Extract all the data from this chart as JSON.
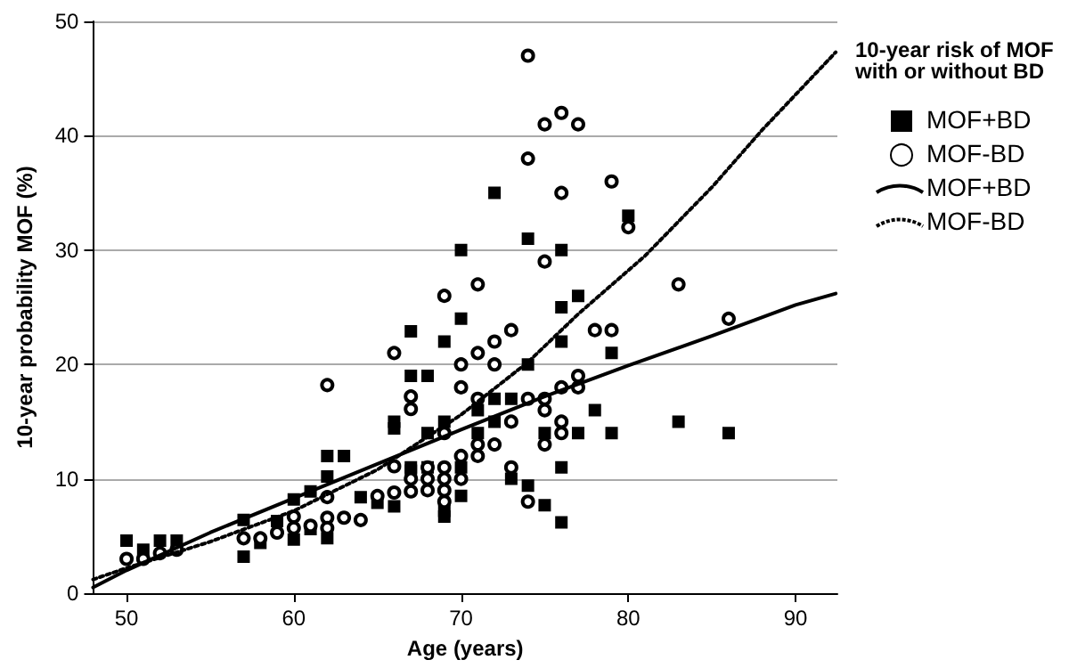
{
  "chart_data": {
    "type": "scatter",
    "xlabel": "Age (years)",
    "ylabel": "10-year probability MOF (%)",
    "legend_title": "10-year risk of MOF with or without BD",
    "legend": "right",
    "grid": "y",
    "xlim": [
      48,
      92.5
    ],
    "xticks": [
      50,
      60,
      70,
      80,
      90
    ],
    "ylim": [
      0,
      50
    ],
    "yticks": [
      0,
      10,
      20,
      30,
      40,
      50
    ],
    "series": [
      {
        "name": "MOF+BD",
        "marker": "square",
        "color": "#000000",
        "x": [
          50,
          51,
          52,
          53,
          57,
          57,
          58,
          59,
          60,
          60,
          61,
          61,
          62,
          62,
          63,
          62,
          64,
          65,
          66,
          66,
          66,
          67,
          67,
          67,
          70,
          76,
          77,
          76,
          70,
          69,
          76,
          74,
          68,
          72,
          73,
          71,
          72,
          69,
          68,
          71,
          75,
          77,
          67,
          73,
          74,
          76,
          70,
          69,
          69,
          75,
          76,
          80,
          79,
          78,
          83,
          86,
          79,
          72,
          74,
          68,
          70
        ],
        "values": [
          4.6,
          3.8,
          4.6,
          4.6,
          6.4,
          3.2,
          4.4,
          6.3,
          8.2,
          4.7,
          8.9,
          5.6,
          10.2,
          12,
          12,
          4.8,
          8.4,
          7.9,
          7.6,
          14.4,
          15,
          22.9,
          19,
          10.7,
          30,
          30,
          26,
          25,
          24,
          22,
          22,
          20,
          19,
          17,
          17,
          16,
          15,
          15,
          14,
          14,
          14,
          14,
          11,
          10,
          9.4,
          11,
          8.5,
          7.2,
          6.7,
          7.7,
          6.2,
          33,
          21,
          16,
          15,
          14,
          14,
          35,
          31,
          11,
          11
        ]
      },
      {
        "name": "MOF-BD",
        "marker": "circle",
        "color": "#000000",
        "x": [
          50,
          51,
          52,
          53,
          57,
          58,
          59,
          60,
          60,
          61,
          62,
          62,
          62,
          62,
          63,
          64,
          65,
          66,
          66,
          66,
          67,
          67,
          67,
          71,
          69,
          73,
          72,
          70,
          72,
          71,
          70,
          71,
          74,
          76,
          77,
          69,
          73,
          75,
          76,
          76,
          75,
          70,
          71,
          71,
          72,
          73,
          68,
          68,
          68,
          69,
          69,
          69,
          69,
          70,
          67,
          74,
          79,
          76,
          80,
          75,
          83,
          78,
          79,
          86,
          77,
          75,
          74,
          76,
          77,
          75,
          74
        ],
        "values": [
          3.0,
          3.0,
          3.5,
          3.8,
          4.8,
          4.8,
          5.3,
          6.7,
          5.7,
          5.9,
          18.2,
          8.4,
          6.6,
          5.7,
          6.6,
          6.4,
          8.5,
          11.1,
          8.8,
          21,
          17.2,
          16.1,
          8.9,
          27,
          26,
          23,
          22,
          20,
          20,
          21,
          18,
          17,
          17,
          18,
          18,
          14,
          15,
          16,
          15,
          14,
          13,
          12,
          13,
          12,
          13,
          11,
          11,
          10,
          9,
          11,
          10,
          9,
          8,
          10,
          10,
          8,
          36,
          35,
          32,
          29,
          27,
          23,
          23,
          24,
          19,
          17,
          47,
          42,
          41,
          41,
          38
        ]
      },
      {
        "name": "MOF+BD",
        "type": "line",
        "marker": "none",
        "line_style": "solid",
        "color": "#000000",
        "x": [
          48,
          50,
          55,
          60,
          65,
          70,
          75,
          80,
          85,
          90,
          92.4
        ],
        "values": [
          0.5,
          2.0,
          5.3,
          8.3,
          11.3,
          14.3,
          17.2,
          19.9,
          22.5,
          25.2,
          26.2
        ]
      },
      {
        "name": "MOF-BD",
        "type": "line",
        "marker": "none",
        "line_style": "dotted",
        "color": "#000000",
        "x": [
          48,
          50,
          55,
          60,
          65,
          70,
          74,
          77,
          81,
          85,
          88,
          92.4
        ],
        "values": [
          1.2,
          2.2,
          4.5,
          7.2,
          10.8,
          15.6,
          20.2,
          24.4,
          29.5,
          35.5,
          40.5,
          47.3
        ]
      }
    ]
  }
}
